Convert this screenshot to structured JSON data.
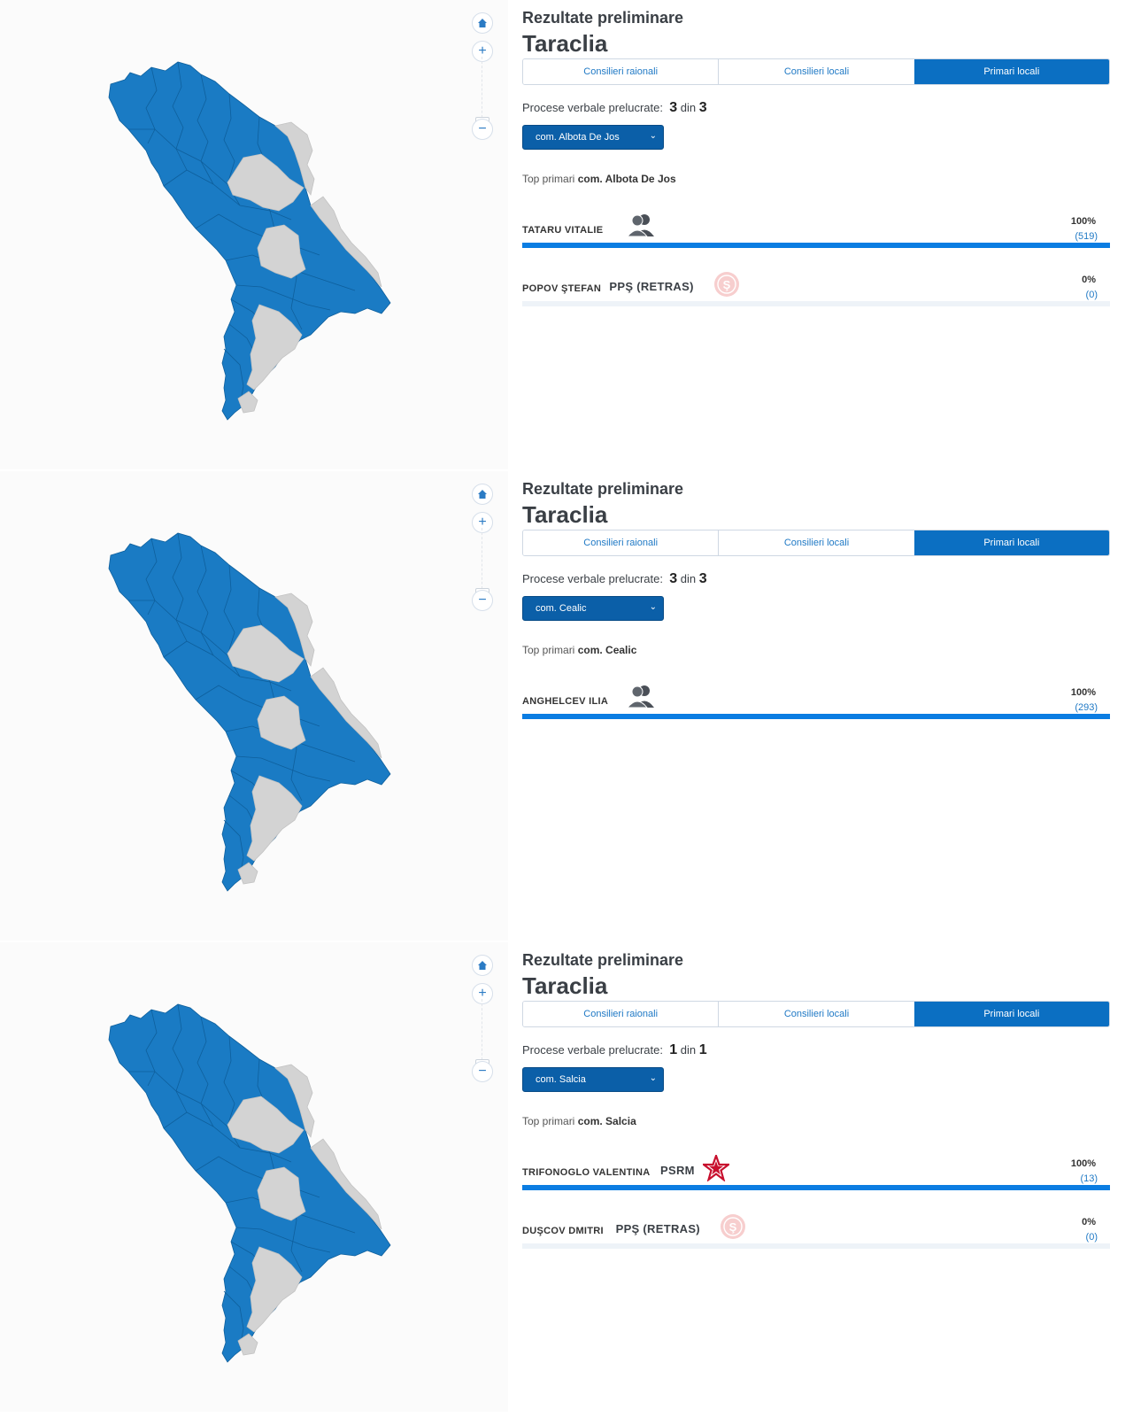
{
  "panels": [
    {
      "subtitle": "Rezultate preliminare",
      "title": "Taraclia",
      "tabs": [
        "Consilieri raionali",
        "Consilieri locali",
        "Primari locali"
      ],
      "active_tab": 2,
      "pv_label": "Procese verbale prelucrate:",
      "pv_done": "3",
      "pv_sep": "din",
      "pv_total": "3",
      "selected_locality": "com. Albota De Jos",
      "top_label": "Top primari",
      "top_locality": "com. Albota De Jos",
      "candidates": [
        {
          "name": "TATARU VITALIE",
          "party": "",
          "icon": "independent-icon",
          "percent": "100%",
          "votes": "(519)",
          "share": 1.0
        },
        {
          "name": "POPOV ŞTEFAN",
          "party": "PPŞ (RETRAS)",
          "icon": "pps-logo-icon",
          "percent": "0%",
          "votes": "(0)",
          "share": 0.0
        }
      ]
    },
    {
      "subtitle": "Rezultate preliminare",
      "title": "Taraclia",
      "tabs": [
        "Consilieri raionali",
        "Consilieri locali",
        "Primari locali"
      ],
      "active_tab": 2,
      "pv_label": "Procese verbale prelucrate:",
      "pv_done": "3",
      "pv_sep": "din",
      "pv_total": "3",
      "selected_locality": "com. Cealic",
      "top_label": "Top primari",
      "top_locality": "com. Cealic",
      "candidates": [
        {
          "name": "ANGHELCEV ILIA",
          "party": "",
          "icon": "independent-icon",
          "percent": "100%",
          "votes": "(293)",
          "share": 1.0
        }
      ]
    },
    {
      "subtitle": "Rezultate preliminare",
      "title": "Taraclia",
      "tabs": [
        "Consilieri raionali",
        "Consilieri locali",
        "Primari locali"
      ],
      "active_tab": 2,
      "pv_label": "Procese verbale prelucrate:",
      "pv_done": "1",
      "pv_sep": "din",
      "pv_total": "1",
      "selected_locality": "com. Salcia",
      "top_label": "Top primari",
      "top_locality": "com. Salcia",
      "candidates": [
        {
          "name": "TRIFONOGLO VALENTINA",
          "party": "PSRM",
          "icon": "psrm-star-icon",
          "percent": "100%",
          "votes": "(13)",
          "share": 1.0
        },
        {
          "name": "DUŞCOV DMITRI",
          "party": "PPŞ (RETRAS)",
          "icon": "pps-logo-icon",
          "percent": "0%",
          "votes": "(0)",
          "share": 0.0
        }
      ]
    }
  ],
  "map": {
    "region_color": "#1a7bc4",
    "inactive_color": "#cfcfcf",
    "icons": [
      "home-icon",
      "zoom-in-icon",
      "zoom-out-icon"
    ]
  },
  "colors": {
    "accent": "#0b6fc2",
    "bar": "#0b7de2",
    "psrm_red": "#c8102e",
    "pps_pink": "#f4b6b6"
  }
}
